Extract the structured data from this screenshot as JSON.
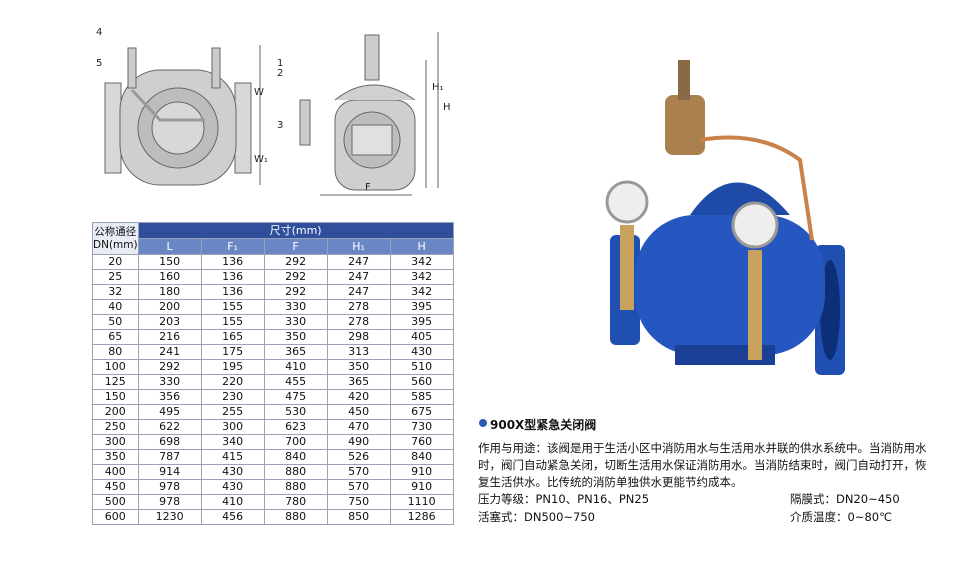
{
  "drawing": {
    "labels": [
      "4",
      "5",
      "W",
      "W₁",
      "1",
      "2",
      "3",
      "H₁",
      "H",
      "F"
    ]
  },
  "table": {
    "header_dn": "公称通径\nDN(mm)",
    "header_size": "尺寸(mm)",
    "columns": [
      "L",
      "F₁",
      "F",
      "H₁",
      "H"
    ],
    "rows": [
      [
        "20",
        "150",
        "136",
        "292",
        "247",
        "342"
      ],
      [
        "25",
        "160",
        "136",
        "292",
        "247",
        "342"
      ],
      [
        "32",
        "180",
        "136",
        "292",
        "247",
        "342"
      ],
      [
        "40",
        "200",
        "155",
        "330",
        "278",
        "395"
      ],
      [
        "50",
        "203",
        "155",
        "330",
        "278",
        "395"
      ],
      [
        "65",
        "216",
        "165",
        "350",
        "298",
        "405"
      ],
      [
        "80",
        "241",
        "175",
        "365",
        "313",
        "430"
      ],
      [
        "100",
        "292",
        "195",
        "410",
        "350",
        "510"
      ],
      [
        "125",
        "330",
        "220",
        "455",
        "365",
        "560"
      ],
      [
        "150",
        "356",
        "230",
        "475",
        "420",
        "585"
      ],
      [
        "200",
        "495",
        "255",
        "530",
        "450",
        "675"
      ],
      [
        "250",
        "622",
        "300",
        "623",
        "470",
        "730"
      ],
      [
        "300",
        "698",
        "340",
        "700",
        "490",
        "760"
      ],
      [
        "350",
        "787",
        "415",
        "840",
        "526",
        "840"
      ],
      [
        "400",
        "914",
        "430",
        "880",
        "570",
        "910"
      ],
      [
        "450",
        "978",
        "430",
        "880",
        "570",
        "910"
      ],
      [
        "500",
        "978",
        "410",
        "780",
        "750",
        "1110"
      ],
      [
        "600",
        "1230",
        "456",
        "880",
        "850",
        "1286"
      ]
    ]
  },
  "product": {
    "title": "900X型紧急关闭阀",
    "description": "作用与用途：该阀是用于生活小区中消防用水与生活用水并联的供水系统中。当消防用水时，阀门自动紧急关闭，切断生活用水保证消防用水。当消防结束时，阀门自动打开，恢复生活供水。比传统的消防单独供水更能节约成本。",
    "pressure": "压力等级：PN10、PN16、PN25",
    "diaphragm": "隔膜式：DN20~450",
    "piston": "活塞式：DN500~750",
    "temperature": "介质温度：0~80℃"
  }
}
